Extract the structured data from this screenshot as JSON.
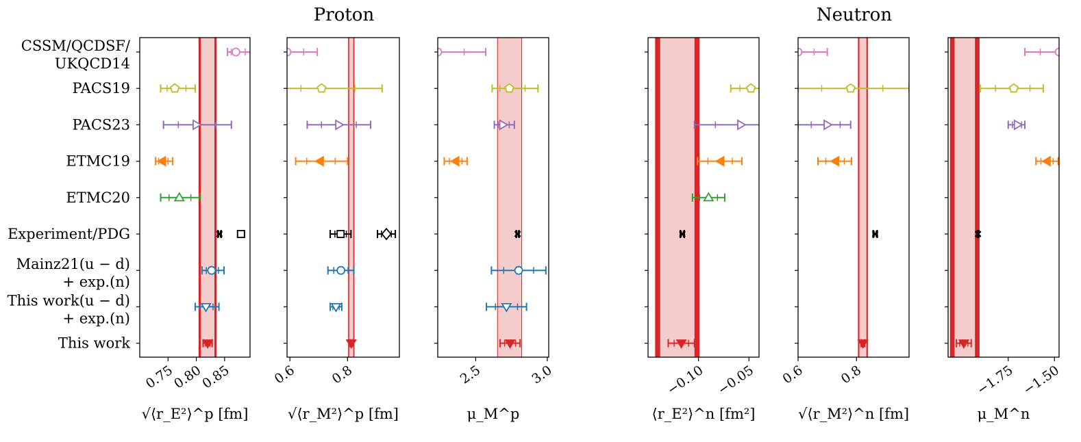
{
  "figure": {
    "group_titles": [
      "Proton",
      "Neutron"
    ],
    "colors": {
      "pink": "#e377c2",
      "olive": "#bcbd22",
      "purple": "#9467bd",
      "orange": "#ff7f0e",
      "green": "#2ca02c",
      "black": "#000000",
      "blue": "#1f77b4",
      "red": "#d62728",
      "band": "#f4cccc"
    }
  },
  "chart_data": [
    {
      "type": "scatter",
      "group": "Proton",
      "xlabel": "√⟨r_E²⟩^p [fm]",
      "xlim": [
        0.7,
        0.895
      ],
      "xticks": [
        0.75,
        0.8,
        0.85
      ],
      "xticklabels": [
        "0.75",
        "0.80",
        "0.85"
      ],
      "categories": [
        "CSSM/QCDSF/ UKQCD14",
        "PACS19",
        "PACS23",
        "ETMC19",
        "ETMC20",
        "Experiment/PDG",
        "Mainz21(u − d) + exp.(n)",
        "This work(u − d) + exp.(n)",
        "This work"
      ],
      "band": {
        "center": 0.82,
        "inner": [
          0.808,
          0.832
        ],
        "outer": [
          0.804,
          0.836
        ]
      },
      "points": [
        {
          "row": 0,
          "x": 0.87,
          "err": [
            0.015,
            0.03
          ],
          "color": "pink",
          "marker": "circle"
        },
        {
          "row": 1,
          "x": 0.762,
          "err": [
            0.025,
            0.036
          ],
          "color": "olive",
          "marker": "pentagon"
        },
        {
          "row": 2,
          "x": 0.8,
          "err": [
            0.058,
            0.062
          ],
          "color": "purple",
          "marker": "tri-right"
        },
        {
          "row": 3,
          "x": 0.74,
          "err": [
            0.012,
            0.018
          ],
          "color": "orange",
          "marker": "tri-left-filled"
        },
        {
          "row": 4,
          "x": 0.77,
          "err": [
            0.033,
            0.037
          ],
          "color": "green",
          "marker": "tri-up"
        },
        {
          "row": 5,
          "x": 0.841,
          "err": [
            0.003,
            0.003
          ],
          "color": "black",
          "marker": "x"
        },
        {
          "row": 5,
          "x": 0.879,
          "err": [
            0.006,
            0.006
          ],
          "color": "black",
          "marker": "square"
        },
        {
          "row": 6,
          "x": 0.827,
          "err": [
            0.017,
            0.022
          ],
          "color": "blue",
          "marker": "circle"
        },
        {
          "row": 7,
          "x": 0.817,
          "err": [
            0.019,
            0.023
          ],
          "color": "blue",
          "marker": "tri-down"
        },
        {
          "row": 8,
          "x": 0.82,
          "err": [
            0.008,
            0.008
          ],
          "color": "red",
          "marker": "tri-down-filled"
        }
      ]
    },
    {
      "type": "scatter",
      "group": "Proton",
      "xlabel": "√⟨r_M²⟩^p [fm]",
      "xlim": [
        0.59,
        0.98
      ],
      "xticks": [
        0.6,
        0.8
      ],
      "xticklabels": [
        "0.6",
        "0.8"
      ],
      "band": {
        "center": 0.813,
        "inner": [
          0.806,
          0.82
        ],
        "outer": [
          0.802,
          0.824
        ]
      },
      "points": [
        {
          "row": 0,
          "x": 0.59,
          "err": [
            0.0,
            0.105
          ],
          "color": "pink",
          "marker": "circle"
        },
        {
          "row": 1,
          "x": 0.71,
          "err": [
            0.13,
            0.21
          ],
          "color": "olive",
          "marker": "pentagon"
        },
        {
          "row": 2,
          "x": 0.77,
          "err": [
            0.11,
            0.11
          ],
          "color": "purple",
          "marker": "tri-right"
        },
        {
          "row": 3,
          "x": 0.705,
          "err": [
            0.085,
            0.095
          ],
          "color": "orange",
          "marker": "tri-left-filled"
        },
        {
          "row": 5,
          "x": 0.776,
          "err": [
            0.036,
            0.036
          ],
          "color": "black",
          "marker": "square"
        },
        {
          "row": 5,
          "x": 0.935,
          "err": [
            0.031,
            0.031
          ],
          "color": "black",
          "marker": "diamond"
        },
        {
          "row": 6,
          "x": 0.777,
          "err": [
            0.045,
            0.045
          ],
          "color": "blue",
          "marker": "circle"
        },
        {
          "row": 7,
          "x": 0.76,
          "err": [
            0.02,
            0.02
          ],
          "color": "blue",
          "marker": "tri-down"
        },
        {
          "row": 8,
          "x": 0.813,
          "err": [
            0.004,
            0.004
          ],
          "color": "red",
          "marker": "tri-down-filled"
        }
      ]
    },
    {
      "type": "scatter",
      "group": "Proton",
      "xlabel": "μ_M^p",
      "xlim": [
        2.235,
        3.01
      ],
      "xticks": [
        2.5,
        3.0
      ],
      "xticklabels": [
        "2.5",
        "3.0"
      ],
      "band": {
        "center": 2.737,
        "inner": [
          2.655,
          2.819
        ],
        "outer": [
          2.65,
          2.824
        ]
      },
      "points": [
        {
          "row": 0,
          "x": 2.235,
          "err": [
            0.0,
            0.335
          ],
          "color": "pink",
          "marker": "circle"
        },
        {
          "row": 1,
          "x": 2.735,
          "err": [
            0.12,
            0.2
          ],
          "color": "olive",
          "marker": "pentagon"
        },
        {
          "row": 2,
          "x": 2.69,
          "err": [
            0.06,
            0.08
          ],
          "color": "purple",
          "marker": "tri-right"
        },
        {
          "row": 3,
          "x": 2.36,
          "err": [
            0.08,
            0.08
          ],
          "color": "orange",
          "marker": "tri-left-filled"
        },
        {
          "row": 5,
          "x": 2.793,
          "err": [
            0.01,
            0.01
          ],
          "color": "black",
          "marker": "x"
        },
        {
          "row": 6,
          "x": 2.8,
          "err": [
            0.19,
            0.19
          ],
          "color": "blue",
          "marker": "circle"
        },
        {
          "row": 7,
          "x": 2.715,
          "err": [
            0.14,
            0.14
          ],
          "color": "blue",
          "marker": "tri-down"
        },
        {
          "row": 8,
          "x": 2.74,
          "err": [
            0.07,
            0.07
          ],
          "color": "red",
          "marker": "tri-down-filled"
        }
      ]
    },
    {
      "type": "scatter",
      "group": "Neutron",
      "xlabel": "⟨r_E²⟩^n [fm²]",
      "xlim": [
        -0.15,
        -0.04
      ],
      "xticks": [
        -0.1,
        -0.05
      ],
      "xticklabels": [
        "−0.10",
        "−0.05"
      ],
      "band": {
        "center": -0.117,
        "inner": [
          -0.138,
          -0.104
        ],
        "outer": [
          -0.143,
          -0.099
        ]
      },
      "points": [
        {
          "row": 1,
          "x": -0.048,
          "err": [
            0.02,
            0.02
          ],
          "color": "olive",
          "marker": "pentagon"
        },
        {
          "row": 2,
          "x": -0.058,
          "err": [
            0.046,
            0.046
          ],
          "color": "purple",
          "marker": "tri-right"
        },
        {
          "row": 3,
          "x": -0.078,
          "err": [
            0.023,
            0.021
          ],
          "color": "orange",
          "marker": "tri-left-filled"
        },
        {
          "row": 4,
          "x": -0.09,
          "err": [
            0.016,
            0.016
          ],
          "color": "green",
          "marker": "tri-up"
        },
        {
          "row": 5,
          "x": -0.116,
          "err": [
            0.002,
            0.002
          ],
          "color": "black",
          "marker": "x"
        },
        {
          "row": 8,
          "x": -0.117,
          "err": [
            0.013,
            0.013
          ],
          "color": "red",
          "marker": "tri-down-filled"
        }
      ]
    },
    {
      "type": "scatter",
      "group": "Neutron",
      "xlabel": "√⟨r_M²⟩^n [fm]",
      "xlim": [
        0.6,
        0.98
      ],
      "xticks": [
        0.6,
        0.8
      ],
      "xticklabels": [
        "0.6",
        "0.8"
      ],
      "band": {
        "center": 0.822,
        "inner": [
          0.81,
          0.834
        ],
        "outer": [
          0.805,
          0.839
        ]
      },
      "points": [
        {
          "row": 0,
          "x": 0.6,
          "err": [
            0.0,
            0.1
          ],
          "color": "pink",
          "marker": "circle"
        },
        {
          "row": 1,
          "x": 0.78,
          "err": [
            0.18,
            0.2
          ],
          "color": "olive",
          "marker": "pentagon"
        },
        {
          "row": 2,
          "x": 0.7,
          "err": [
            0.1,
            0.08
          ],
          "color": "purple",
          "marker": "tri-right"
        },
        {
          "row": 3,
          "x": 0.728,
          "err": [
            0.06,
            0.055
          ],
          "color": "orange",
          "marker": "tri-left-filled"
        },
        {
          "row": 5,
          "x": 0.864,
          "err": [
            0.007,
            0.007
          ],
          "color": "black",
          "marker": "x"
        },
        {
          "row": 8,
          "x": 0.822,
          "err": [
            0.006,
            0.006
          ],
          "color": "red",
          "marker": "tri-down-filled"
        }
      ]
    },
    {
      "type": "scatter",
      "group": "Neutron",
      "xlabel": "μ_M^n",
      "xlim": [
        -2.075,
        -1.475
      ],
      "xticks": [
        -1.75,
        -1.5
      ],
      "xticklabels": [
        "−1.75",
        "−1.50"
      ],
      "band": {
        "center": -1.99,
        "inner": [
          -2.04,
          -1.93
        ],
        "outer": [
          -2.065,
          -1.905
        ]
      },
      "points": [
        {
          "row": 0,
          "x": -1.475,
          "err": [
            0.185,
            0.0
          ],
          "color": "pink",
          "marker": "circle"
        },
        {
          "row": 1,
          "x": -1.72,
          "err": [
            0.18,
            0.16
          ],
          "color": "olive",
          "marker": "pentagon"
        },
        {
          "row": 2,
          "x": -1.7,
          "err": [
            0.05,
            0.04
          ],
          "color": "purple",
          "marker": "tri-right"
        },
        {
          "row": 3,
          "x": -1.54,
          "err": [
            0.06,
            0.06
          ],
          "color": "orange",
          "marker": "tri-left-filled"
        },
        {
          "row": 5,
          "x": -1.913,
          "err": [
            0.004,
            0.004
          ],
          "color": "black",
          "marker": "x"
        },
        {
          "row": 8,
          "x": -1.99,
          "err": [
            0.04,
            0.04
          ],
          "color": "red",
          "marker": "tri-down-filled"
        }
      ]
    }
  ]
}
